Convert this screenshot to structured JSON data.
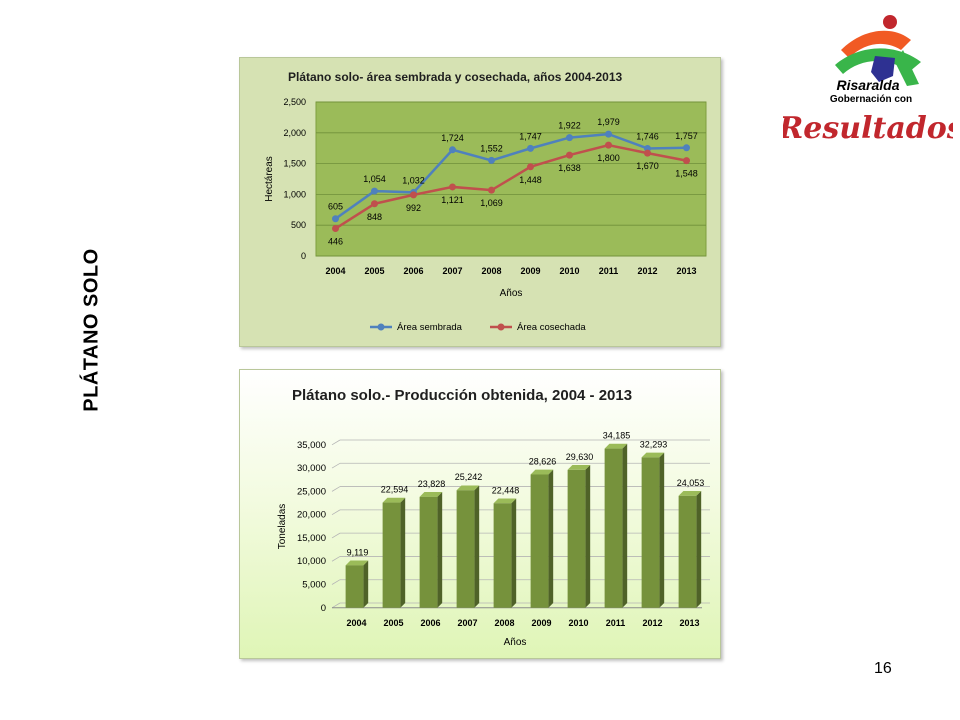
{
  "side_title": "PLÁTANO SOLO",
  "page_number": "16",
  "logo": {
    "line1": "Risaralda",
    "line2": "Gobernación con",
    "line3": "Resultados",
    "colors": {
      "orange": "#f15a24",
      "green": "#39b54a",
      "blue": "#2e3192",
      "red": "#c1272d"
    }
  },
  "chart_data": [
    {
      "type": "line",
      "title": "Plátano solo- área sembrada y cosechada, años 2004-2013",
      "xlabel": "Años",
      "ylabel": "Hectáreas",
      "categories": [
        "2004",
        "2005",
        "2006",
        "2007",
        "2008",
        "2009",
        "2010",
        "2011",
        "2012",
        "2013"
      ],
      "ylim": [
        0,
        2500
      ],
      "yticks": [
        0,
        500,
        1000,
        1500,
        2000,
        2500
      ],
      "ytick_labels": [
        "0",
        "500",
        "1,000",
        "1,500",
        "2,000",
        "2,500"
      ],
      "grid": true,
      "legend_position": "bottom",
      "series": [
        {
          "name": "Área sembrada",
          "color": "#4f81bd",
          "values": [
            605,
            1054,
            1032,
            1724,
            1552,
            1747,
            1922,
            1979,
            1746,
            1757
          ],
          "labels": [
            "605",
            "1,054",
            "1,032",
            "1,724",
            "1,552",
            "1,747",
            "1,922",
            "1,979",
            "1,746",
            "1,757"
          ]
        },
        {
          "name": "Área cosechada",
          "color": "#c0504d",
          "values": [
            446,
            848,
            992,
            1121,
            1069,
            1448,
            1638,
            1800,
            1670,
            1548
          ],
          "labels": [
            "446",
            "848",
            "992",
            "1,121",
            "1,069",
            "1,448",
            "1,638",
            "1,800",
            "1,670",
            "1,548"
          ]
        }
      ]
    },
    {
      "type": "bar",
      "title": "Plátano solo.- Producción obtenida, 2004 - 2013",
      "xlabel": "Años",
      "ylabel": "Toneladas",
      "categories": [
        "2004",
        "2005",
        "2006",
        "2007",
        "2008",
        "2009",
        "2010",
        "2011",
        "2012",
        "2013"
      ],
      "ylim": [
        0,
        35000
      ],
      "yticks": [
        0,
        5000,
        10000,
        15000,
        20000,
        25000,
        30000,
        35000
      ],
      "ytick_labels": [
        "0",
        "5,000",
        "10,000",
        "15,000",
        "20,000",
        "25,000",
        "30,000",
        "35,000"
      ],
      "grid": true,
      "bar_color": "#76923c",
      "values": [
        9119,
        22594,
        23828,
        25242,
        22448,
        28626,
        29630,
        34185,
        32293,
        24053
      ],
      "labels": [
        "9,119",
        "22,594",
        "23,828",
        "25,242",
        "22,448",
        "28,626",
        "29,630",
        "34,185",
        "32,293",
        "24,053"
      ]
    }
  ]
}
